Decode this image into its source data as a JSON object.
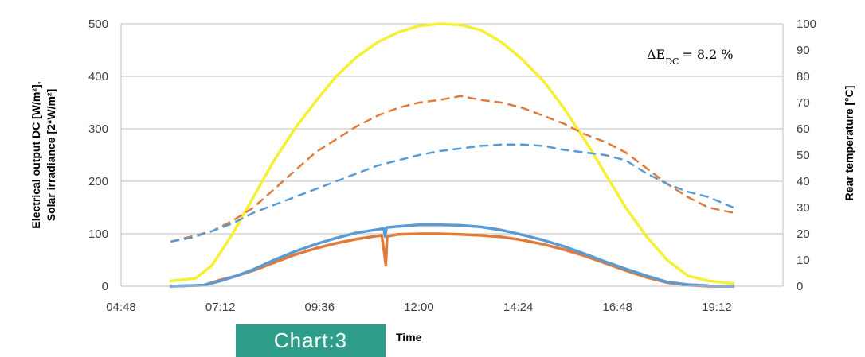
{
  "chart_data": {
    "type": "line",
    "title": "",
    "xlabel": "Time",
    "ylabel_left": [
      "Electrical output DC [W/m²],",
      "Solar irradiance [2*W/m²]"
    ],
    "ylabel_right": "Rear temperature [°C]",
    "annotation": "ΔE_DC = 8.2 %",
    "annotation_value": "8.2 %",
    "x_ticks": [
      "04:48",
      "07:12",
      "09:36",
      "12:00",
      "14:24",
      "16:48",
      "19:12"
    ],
    "x_tick_hours": [
      4.8,
      7.2,
      9.6,
      12.0,
      14.4,
      16.8,
      19.2
    ],
    "xlim": [
      4.8,
      20.8
    ],
    "y_left_ticks": [
      "0",
      "100",
      "200",
      "300",
      "400",
      "500"
    ],
    "ylim_left": [
      0,
      500
    ],
    "y_right_ticks": [
      "0",
      "10",
      "20",
      "30",
      "40",
      "50",
      "60",
      "70",
      "80",
      "90",
      "100"
    ],
    "ylim_right": [
      0,
      100
    ],
    "grid": "horizontal",
    "x_unit": "hours of day",
    "series": [
      {
        "axis": "left",
        "color": "#f5f034",
        "style": "solid",
        "width": 3.5,
        "points": [
          [
            6.0,
            10
          ],
          [
            6.6,
            15
          ],
          [
            7.0,
            40
          ],
          [
            7.5,
            100
          ],
          [
            8.0,
            170
          ],
          [
            8.5,
            240
          ],
          [
            9.0,
            300
          ],
          [
            9.5,
            352
          ],
          [
            10.0,
            400
          ],
          [
            10.5,
            437
          ],
          [
            11.0,
            465
          ],
          [
            11.5,
            484
          ],
          [
            12.0,
            496
          ],
          [
            12.5,
            500
          ],
          [
            13.0,
            498
          ],
          [
            13.5,
            488
          ],
          [
            14.0,
            465
          ],
          [
            14.5,
            432
          ],
          [
            15.0,
            392
          ],
          [
            15.5,
            340
          ],
          [
            16.0,
            280
          ],
          [
            16.5,
            215
          ],
          [
            17.0,
            150
          ],
          [
            17.5,
            95
          ],
          [
            18.0,
            50
          ],
          [
            18.5,
            20
          ],
          [
            19.0,
            10
          ],
          [
            19.6,
            5
          ]
        ]
      },
      {
        "axis": "right",
        "color": "#e07b39",
        "style": "dashed",
        "width": 2.5,
        "points": [
          [
            6.0,
            17
          ],
          [
            6.5,
            19
          ],
          [
            7.0,
            21
          ],
          [
            7.5,
            25
          ],
          [
            8.0,
            30
          ],
          [
            8.5,
            37
          ],
          [
            9.0,
            44
          ],
          [
            9.5,
            51
          ],
          [
            10.0,
            56
          ],
          [
            10.5,
            61
          ],
          [
            11.0,
            65
          ],
          [
            11.5,
            68
          ],
          [
            12.0,
            70
          ],
          [
            12.5,
            71
          ],
          [
            13.0,
            72.5
          ],
          [
            13.5,
            71
          ],
          [
            14.0,
            70
          ],
          [
            14.5,
            68
          ],
          [
            15.0,
            65
          ],
          [
            15.5,
            62
          ],
          [
            16.0,
            58
          ],
          [
            16.5,
            55
          ],
          [
            17.0,
            51
          ],
          [
            17.5,
            45
          ],
          [
            18.0,
            39
          ],
          [
            18.5,
            34
          ],
          [
            19.0,
            30
          ],
          [
            19.6,
            28
          ]
        ]
      },
      {
        "axis": "right",
        "color": "#5b9bd5",
        "style": "dashed",
        "width": 2.5,
        "points": [
          [
            6.0,
            17
          ],
          [
            6.5,
            18.5
          ],
          [
            7.0,
            21
          ],
          [
            7.5,
            24
          ],
          [
            8.0,
            28
          ],
          [
            8.5,
            31
          ],
          [
            9.0,
            34
          ],
          [
            9.5,
            37
          ],
          [
            10.0,
            40
          ],
          [
            10.5,
            43
          ],
          [
            11.0,
            46
          ],
          [
            11.5,
            48
          ],
          [
            12.0,
            50
          ],
          [
            12.5,
            51.5
          ],
          [
            13.0,
            52.5
          ],
          [
            13.5,
            53.5
          ],
          [
            14.0,
            54
          ],
          [
            14.5,
            54
          ],
          [
            15.0,
            53.5
          ],
          [
            15.5,
            52
          ],
          [
            16.0,
            51
          ],
          [
            16.5,
            50
          ],
          [
            17.0,
            48
          ],
          [
            17.5,
            43
          ],
          [
            18.0,
            39
          ],
          [
            18.5,
            36
          ],
          [
            19.0,
            34
          ],
          [
            19.6,
            30
          ]
        ]
      },
      {
        "axis": "left",
        "color": "#e07b39",
        "style": "solid",
        "width": 3.5,
        "points": [
          [
            6.0,
            0
          ],
          [
            6.8,
            2
          ],
          [
            7.2,
            12
          ],
          [
            7.6,
            20
          ],
          [
            8.0,
            30
          ],
          [
            8.5,
            45
          ],
          [
            9.0,
            60
          ],
          [
            9.5,
            72
          ],
          [
            10.0,
            82
          ],
          [
            10.5,
            90
          ],
          [
            11.0,
            96
          ],
          [
            11.1,
            97
          ],
          [
            11.17,
            60
          ],
          [
            11.2,
            40
          ],
          [
            11.23,
            95
          ],
          [
            11.5,
            99
          ],
          [
            12.0,
            100
          ],
          [
            12.5,
            100
          ],
          [
            13.0,
            99
          ],
          [
            13.5,
            97
          ],
          [
            14.0,
            94
          ],
          [
            14.5,
            88
          ],
          [
            15.0,
            80
          ],
          [
            15.5,
            70
          ],
          [
            16.0,
            58
          ],
          [
            16.5,
            44
          ],
          [
            17.0,
            30
          ],
          [
            17.5,
            17
          ],
          [
            18.0,
            7
          ],
          [
            18.5,
            2
          ],
          [
            19.0,
            0
          ],
          [
            19.6,
            0
          ]
        ]
      },
      {
        "axis": "left",
        "color": "#5b9bd5",
        "style": "solid",
        "width": 3.5,
        "points": [
          [
            6.0,
            0
          ],
          [
            6.8,
            2
          ],
          [
            7.2,
            10
          ],
          [
            7.6,
            20
          ],
          [
            8.0,
            32
          ],
          [
            8.5,
            50
          ],
          [
            9.0,
            66
          ],
          [
            9.5,
            80
          ],
          [
            10.0,
            92
          ],
          [
            10.5,
            102
          ],
          [
            11.0,
            108
          ],
          [
            11.15,
            110
          ],
          [
            11.18,
            95
          ],
          [
            11.22,
            112
          ],
          [
            11.5,
            114
          ],
          [
            12.0,
            117
          ],
          [
            12.5,
            117
          ],
          [
            13.0,
            116
          ],
          [
            13.5,
            113
          ],
          [
            14.0,
            107
          ],
          [
            14.5,
            98
          ],
          [
            15.0,
            88
          ],
          [
            15.5,
            76
          ],
          [
            16.0,
            62
          ],
          [
            16.5,
            47
          ],
          [
            17.0,
            33
          ],
          [
            17.5,
            20
          ],
          [
            18.0,
            8
          ],
          [
            18.5,
            3
          ],
          [
            19.0,
            1
          ],
          [
            19.6,
            0
          ]
        ]
      }
    ]
  },
  "badge": {
    "label": "Chart:3",
    "color": "#2e9e8a"
  }
}
